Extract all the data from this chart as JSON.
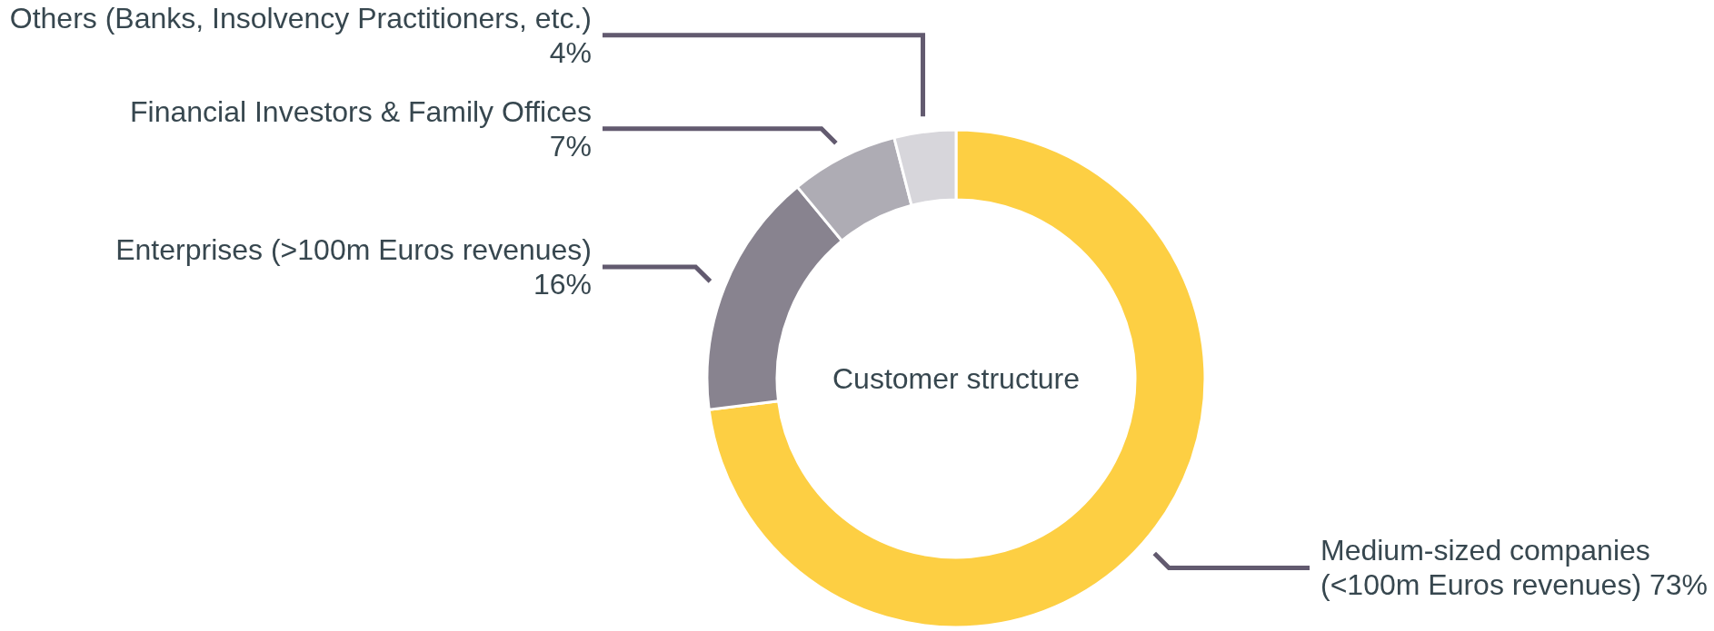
{
  "chart_data": {
    "type": "donut",
    "title": "Customer structure",
    "categories": [
      "Medium-sized companies (<100m Euros revenues)",
      "Enterprises (>100m Euros revenues)",
      "Financial Investors & Family Offices",
      "Others (Banks, Insolvency Practitioners, etc.)"
    ],
    "values": [
      73,
      16,
      7,
      4
    ],
    "colors": [
      "#fdcf43",
      "#88838f",
      "#aeacb4",
      "#d7d6db"
    ],
    "value_labels": [
      "73%",
      "16%",
      "7%",
      "4%"
    ]
  }
}
